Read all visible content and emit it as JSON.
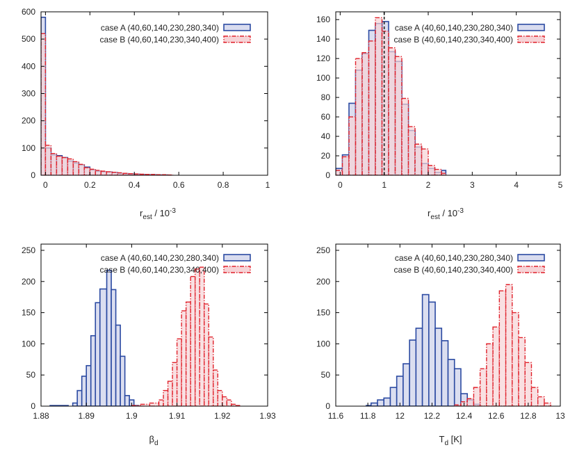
{
  "colors": {
    "series_a_edge": "#2b4aa2",
    "series_a_fill": "#d9dcef",
    "series_b_edge": "#e0202a",
    "series_b_fill": "#f6d3d6",
    "axis": "#000000"
  },
  "chart_data": [
    {
      "type": "histogram",
      "id": "top-left",
      "xlabel": "r",
      "xlabel_sub": "est",
      "xlabel_suffix": " / 10",
      "xlabel_sup": "-3",
      "xlim": [
        -0.02,
        1
      ],
      "ylim": [
        0,
        600
      ],
      "xticks": [
        0,
        0.2,
        0.4,
        0.6,
        0.8,
        1
      ],
      "yticks": [
        0,
        100,
        200,
        300,
        400,
        500,
        600
      ],
      "xtick_labels": [
        "0",
        "0.2",
        "0.4",
        "0.6",
        "0.8",
        "1"
      ],
      "ytick_labels": [
        "0",
        "100",
        "200",
        "300",
        "400",
        "500",
        "600"
      ],
      "reference_line": null,
      "series": [
        {
          "name": "case A (40,60,140,230,280,340)",
          "style": "solid",
          "bins": [
            [
              -0.02,
              0,
              580
            ],
            [
              0,
              0.025,
              100
            ],
            [
              0.025,
              0.05,
              75
            ],
            [
              0.05,
              0.075,
              72
            ],
            [
              0.075,
              0.1,
              65
            ],
            [
              0.1,
              0.125,
              52
            ],
            [
              0.125,
              0.15,
              45
            ],
            [
              0.15,
              0.175,
              38
            ],
            [
              0.175,
              0.2,
              30
            ],
            [
              0.2,
              0.225,
              20
            ],
            [
              0.225,
              0.25,
              15
            ],
            [
              0.25,
              0.275,
              13
            ],
            [
              0.275,
              0.3,
              12
            ],
            [
              0.3,
              0.325,
              10
            ],
            [
              0.325,
              0.35,
              7
            ],
            [
              0.35,
              0.375,
              6
            ],
            [
              0.375,
              0.4,
              5
            ],
            [
              0.4,
              0.425,
              4
            ],
            [
              0.425,
              0.45,
              3
            ],
            [
              0.45,
              0.475,
              2
            ],
            [
              0.475,
              0.5,
              2
            ],
            [
              0.5,
              0.525,
              1
            ],
            [
              0.525,
              0.55,
              1
            ]
          ]
        },
        {
          "name": "case B (40,60,140,230,340,400)",
          "style": "dashdot",
          "bins": [
            [
              -0.02,
              0,
              520
            ],
            [
              0,
              0.025,
              110
            ],
            [
              0.025,
              0.05,
              80
            ],
            [
              0.05,
              0.075,
              70
            ],
            [
              0.075,
              0.1,
              65
            ],
            [
              0.1,
              0.125,
              60
            ],
            [
              0.125,
              0.15,
              50
            ],
            [
              0.15,
              0.175,
              40
            ],
            [
              0.175,
              0.2,
              28
            ],
            [
              0.2,
              0.225,
              22
            ],
            [
              0.225,
              0.25,
              18
            ],
            [
              0.25,
              0.275,
              15
            ],
            [
              0.275,
              0.3,
              13
            ],
            [
              0.3,
              0.325,
              11
            ],
            [
              0.325,
              0.35,
              9
            ],
            [
              0.35,
              0.375,
              7
            ],
            [
              0.375,
              0.4,
              6
            ],
            [
              0.4,
              0.425,
              5
            ],
            [
              0.425,
              0.45,
              4
            ],
            [
              0.45,
              0.475,
              3
            ],
            [
              0.475,
              0.5,
              3
            ],
            [
              0.5,
              0.525,
              2
            ],
            [
              0.525,
              0.55,
              2
            ],
            [
              0.55,
              0.575,
              1
            ]
          ]
        }
      ]
    },
    {
      "type": "histogram",
      "id": "top-right",
      "xlabel": "r",
      "xlabel_sub": "est",
      "xlabel_suffix": " / 10",
      "xlabel_sup": "-3",
      "xlim": [
        -0.1,
        5
      ],
      "ylim": [
        0,
        168
      ],
      "xticks": [
        0,
        1,
        2,
        3,
        4,
        5
      ],
      "yticks": [
        0,
        20,
        40,
        60,
        80,
        100,
        120,
        140,
        160
      ],
      "xtick_labels": [
        "0",
        "1",
        "2",
        "3",
        "4",
        "5"
      ],
      "ytick_labels": [
        "0",
        "20",
        "40",
        "60",
        "80",
        "100",
        "120",
        "140",
        "160"
      ],
      "reference_line": 1,
      "series": [
        {
          "name": "case A (40,60,140,230,280,340)",
          "style": "solid",
          "bins": [
            [
              -0.1,
              0.05,
              7
            ],
            [
              0.05,
              0.2,
              21
            ],
            [
              0.2,
              0.35,
              74
            ],
            [
              0.35,
              0.5,
              108
            ],
            [
              0.5,
              0.65,
              125
            ],
            [
              0.65,
              0.8,
              149
            ],
            [
              0.8,
              0.95,
              156
            ],
            [
              0.95,
              1.1,
              158
            ],
            [
              1.1,
              1.25,
              127
            ],
            [
              1.25,
              1.4,
              117
            ],
            [
              1.4,
              1.55,
              73
            ],
            [
              1.55,
              1.7,
              46
            ],
            [
              1.7,
              1.85,
              29
            ],
            [
              1.85,
              2.0,
              12
            ],
            [
              2.0,
              2.15,
              7
            ],
            [
              2.15,
              2.3,
              3
            ],
            [
              2.3,
              2.4,
              5
            ]
          ]
        },
        {
          "name": "case B (40,60,140,230,340,400)",
          "style": "dashdot",
          "bins": [
            [
              -0.1,
              0.05,
              5
            ],
            [
              0.05,
              0.2,
              19
            ],
            [
              0.2,
              0.35,
              60
            ],
            [
              0.35,
              0.5,
              120
            ],
            [
              0.5,
              0.65,
              126
            ],
            [
              0.65,
              0.8,
              138
            ],
            [
              0.8,
              0.95,
              162
            ],
            [
              0.95,
              1.1,
              148
            ],
            [
              1.1,
              1.25,
              131
            ],
            [
              1.25,
              1.4,
              122
            ],
            [
              1.4,
              1.55,
              79
            ],
            [
              1.55,
              1.7,
              50
            ],
            [
              1.7,
              1.85,
              32
            ],
            [
              1.85,
              2.0,
              27
            ],
            [
              2.0,
              2.15,
              10
            ],
            [
              2.15,
              2.3,
              6
            ],
            [
              2.3,
              2.4,
              2
            ]
          ]
        }
      ]
    },
    {
      "type": "histogram",
      "id": "bottom-left",
      "xlabel": "β",
      "xlabel_sub": "d",
      "xlabel_suffix": "",
      "xlabel_sup": "",
      "xlim": [
        1.88,
        1.93
      ],
      "ylim": [
        0,
        260
      ],
      "xticks": [
        1.88,
        1.89,
        1.9,
        1.91,
        1.92,
        1.93
      ],
      "yticks": [
        0,
        50,
        100,
        150,
        200,
        250
      ],
      "xtick_labels": [
        "1.88",
        "1.89",
        "1.9",
        "1.91",
        "1.92",
        "1.93"
      ],
      "ytick_labels": [
        "0",
        "50",
        "100",
        "150",
        "200",
        "250"
      ],
      "reference_line": null,
      "series": [
        {
          "name": "case A (40,60,140,230,280,340)",
          "style": "solid",
          "bins": [
            [
              1.882,
              1.886,
              1
            ],
            [
              1.887,
              1.888,
              5
            ],
            [
              1.888,
              1.889,
              25
            ],
            [
              1.889,
              1.89,
              48
            ],
            [
              1.89,
              1.891,
              65
            ],
            [
              1.891,
              1.892,
              113
            ],
            [
              1.892,
              1.893,
              166
            ],
            [
              1.893,
              1.8945,
              188
            ],
            [
              1.8945,
              1.8955,
              218
            ],
            [
              1.8955,
              1.8965,
              187
            ],
            [
              1.8965,
              1.8975,
              130
            ],
            [
              1.8975,
              1.8985,
              80
            ],
            [
              1.8985,
              1.8995,
              17
            ],
            [
              1.8995,
              1.9005,
              10
            ],
            [
              1.9005,
              1.9015,
              1
            ]
          ]
        },
        {
          "name": "case B (40,60,140,230,340,400)",
          "style": "dashdot",
          "bins": [
            [
              1.9,
              1.902,
              1
            ],
            [
              1.902,
              1.904,
              3
            ],
            [
              1.904,
              1.906,
              5
            ],
            [
              1.906,
              1.907,
              10
            ],
            [
              1.907,
              1.908,
              25
            ],
            [
              1.908,
              1.909,
              40
            ],
            [
              1.909,
              1.91,
              70
            ],
            [
              1.91,
              1.911,
              108
            ],
            [
              1.911,
              1.912,
              153
            ],
            [
              1.912,
              1.913,
              167
            ],
            [
              1.913,
              1.914,
              208
            ],
            [
              1.914,
              1.915,
              220
            ],
            [
              1.915,
              1.916,
              223
            ],
            [
              1.916,
              1.917,
              164
            ],
            [
              1.917,
              1.918,
              111
            ],
            [
              1.918,
              1.919,
              58
            ],
            [
              1.919,
              1.92,
              25
            ],
            [
              1.92,
              1.921,
              15
            ],
            [
              1.921,
              1.922,
              10
            ],
            [
              1.922,
              1.923,
              3
            ],
            [
              1.923,
              1.924,
              1
            ]
          ]
        }
      ]
    },
    {
      "type": "histogram",
      "id": "bottom-right",
      "xlabel": "T",
      "xlabel_sub": "d",
      "xlabel_suffix": " [K]",
      "xlabel_sup": "",
      "xlim": [
        11.6,
        13
      ],
      "ylim": [
        0,
        260
      ],
      "xticks": [
        11.6,
        11.8,
        12,
        12.2,
        12.4,
        12.6,
        12.8,
        13
      ],
      "yticks": [
        0,
        50,
        100,
        150,
        200,
        250
      ],
      "xtick_labels": [
        "11.6",
        "11.8",
        "12",
        "12.2",
        "12.4",
        "12.6",
        "12.8",
        "13"
      ],
      "ytick_labels": [
        "0",
        "50",
        "100",
        "150",
        "200",
        "250"
      ],
      "reference_line": null,
      "series": [
        {
          "name": "case A (40,60,140,230,280,340)",
          "style": "solid",
          "bins": [
            [
              11.79,
              11.82,
              1
            ],
            [
              11.82,
              11.86,
              5
            ],
            [
              11.86,
              11.9,
              10
            ],
            [
              11.9,
              11.94,
              13
            ],
            [
              11.94,
              11.98,
              30
            ],
            [
              11.98,
              12.02,
              48
            ],
            [
              12.02,
              12.06,
              68
            ],
            [
              12.06,
              12.1,
              106
            ],
            [
              12.1,
              12.14,
              125
            ],
            [
              12.14,
              12.18,
              179
            ],
            [
              12.18,
              12.22,
              167
            ],
            [
              12.22,
              12.26,
              125
            ],
            [
              12.26,
              12.3,
              105
            ],
            [
              12.3,
              12.34,
              75
            ],
            [
              12.34,
              12.38,
              60
            ],
            [
              12.38,
              12.42,
              20
            ],
            [
              12.42,
              12.46,
              10
            ],
            [
              12.46,
              12.5,
              3
            ]
          ]
        },
        {
          "name": "case B (40,60,140,230,340,400)",
          "style": "dashdot",
          "bins": [
            [
              12.34,
              12.38,
              2
            ],
            [
              12.38,
              12.42,
              7
            ],
            [
              12.42,
              12.46,
              12
            ],
            [
              12.46,
              12.5,
              30
            ],
            [
              12.5,
              12.54,
              60
            ],
            [
              12.54,
              12.58,
              100
            ],
            [
              12.58,
              12.62,
              127
            ],
            [
              12.62,
              12.66,
              185
            ],
            [
              12.66,
              12.7,
              195
            ],
            [
              12.7,
              12.74,
              150
            ],
            [
              12.74,
              12.78,
              110
            ],
            [
              12.78,
              12.82,
              70
            ],
            [
              12.82,
              12.86,
              30
            ],
            [
              12.86,
              12.9,
              15
            ],
            [
              12.9,
              12.94,
              5
            ]
          ]
        }
      ]
    }
  ]
}
